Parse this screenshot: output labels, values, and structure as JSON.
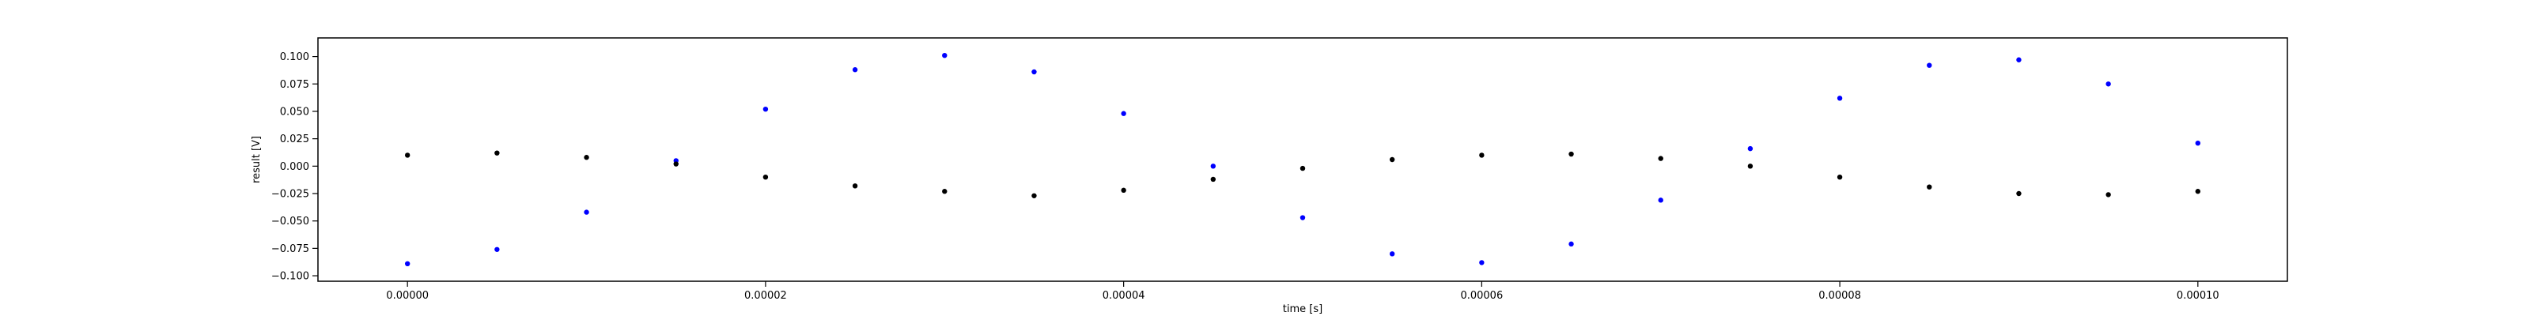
{
  "chart_data": {
    "type": "scatter",
    "title": "",
    "xlabel": "time [s]",
    "ylabel": "result [V]",
    "xlim": [
      -5e-06,
      0.000105
    ],
    "ylim": [
      -0.105,
      0.117
    ],
    "x_ticks": [
      0,
      2e-05,
      4e-05,
      6e-05,
      8e-05,
      0.0001
    ],
    "x_tick_labels": [
      "0.00000",
      "0.00002",
      "0.00004",
      "0.00006",
      "0.00008",
      "0.00010"
    ],
    "y_ticks": [
      -0.1,
      -0.075,
      -0.05,
      -0.025,
      0,
      0.025,
      0.05,
      0.075,
      0.1
    ],
    "y_tick_labels": [
      "−0.100",
      "−0.075",
      "−0.050",
      "−0.025",
      "0.000",
      "0.025",
      "0.050",
      "0.075",
      "0.100"
    ],
    "grid": false,
    "legend": "none",
    "series": [
      {
        "color": "#0000ff",
        "x": [
          0,
          5e-06,
          1e-05,
          1.5e-05,
          2e-05,
          2.5e-05,
          3e-05,
          3.5e-05,
          4e-05,
          4.5e-05,
          5e-05,
          5.5e-05,
          6e-05,
          6.5e-05,
          7e-05,
          7.5e-05,
          8e-05,
          8.5e-05,
          9e-05,
          9.5e-05,
          0.0001
        ],
        "y": [
          -0.089,
          -0.076,
          -0.042,
          0.005,
          0.052,
          0.088,
          0.101,
          0.086,
          0.048,
          0.0,
          -0.047,
          -0.08,
          -0.088,
          -0.071,
          -0.031,
          0.016,
          0.062,
          0.092,
          0.097,
          0.075,
          0.021
        ]
      },
      {
        "color": "#000000",
        "x": [
          0,
          5e-06,
          1e-05,
          1.5e-05,
          2e-05,
          2.5e-05,
          3e-05,
          3.5e-05,
          4e-05,
          4.5e-05,
          5e-05,
          5.5e-05,
          6e-05,
          6.5e-05,
          7e-05,
          7.5e-05,
          8e-05,
          8.5e-05,
          9e-05,
          9.5e-05,
          0.0001
        ],
        "y": [
          0.01,
          0.012,
          0.008,
          0.002,
          -0.01,
          -0.018,
          -0.023,
          -0.027,
          -0.022,
          -0.012,
          -0.002,
          0.006,
          0.01,
          0.011,
          0.007,
          0.0,
          -0.01,
          -0.019,
          -0.025,
          -0.026,
          -0.023
        ]
      }
    ]
  }
}
